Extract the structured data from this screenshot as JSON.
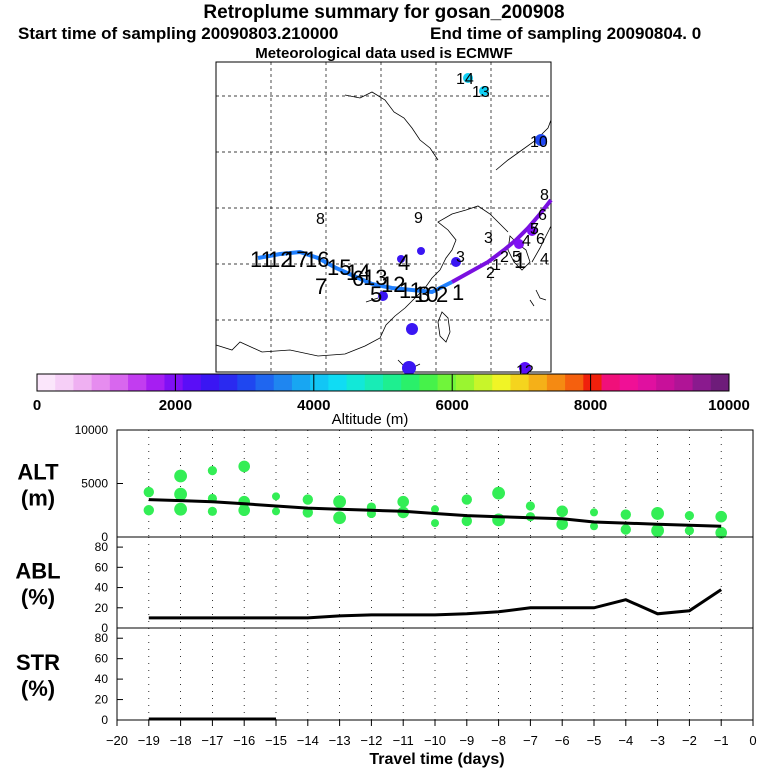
{
  "header": {
    "title": "Retroplume summary for gosan_200908",
    "start": "Start time of sampling 20090803.210000",
    "end": "End time of sampling 20090804.     0",
    "met": "Meteorological data used is ECMWF"
  },
  "colors": {
    "track_start": "#2080ff",
    "track_end": "#7a10e0",
    "scatter": "#33ee55",
    "line": "#000000",
    "grid": "#000000"
  },
  "colorbar": {
    "ticks": [
      "0",
      "2000",
      "4000",
      "6000",
      "8000",
      "10000"
    ],
    "label": "Altitude (m)",
    "colors": [
      "#fbe6fb",
      "#f6cff7",
      "#efb0f2",
      "#e68cef",
      "#d867ee",
      "#c23df0",
      "#a61ef2",
      "#8010f5",
      "#5a0ef7",
      "#3a16f3",
      "#2a2af0",
      "#1f47f0",
      "#1f66f0",
      "#1f86f0",
      "#18a6f2",
      "#12c6f5",
      "#10dcf4",
      "#12e8d8",
      "#18ecb6",
      "#1eef90",
      "#2af06a",
      "#46f24a",
      "#70f53a",
      "#9af530",
      "#c8f52a",
      "#f0f426",
      "#f5d41e",
      "#f5b018",
      "#f58a12",
      "#f5600e",
      "#f0200c",
      "#f0107a",
      "#f01096",
      "#e010a0",
      "#c8109a",
      "#b01496",
      "#8a1a8e",
      "#6e1c7a"
    ]
  },
  "map_labels": [
    "14",
    "13",
    "10",
    "9",
    "8",
    "11",
    "12",
    "17",
    "16",
    "15",
    "14",
    "13",
    "12",
    "11",
    "10",
    "6",
    "5",
    "4",
    "3",
    "2",
    "1",
    "7",
    "6",
    "5",
    "4",
    "3",
    "2",
    "1",
    "8",
    "7",
    "6",
    "5",
    "4",
    "3",
    "2",
    "1",
    "12"
  ],
  "chart_data": [
    {
      "type": "scatter",
      "name": "ALT",
      "ylabel": "ALT\n(m)",
      "ylabel_lines": [
        "ALT",
        "(m)"
      ],
      "ylim": [
        0,
        10000
      ],
      "yticks": [
        "0",
        "5000",
        "10000"
      ],
      "x": [
        -19,
        -18,
        -17,
        -16,
        -15,
        -14,
        -13,
        -12,
        -11,
        -10,
        -9,
        -8,
        -7,
        -6,
        -5,
        -4,
        -3,
        -2,
        -1
      ],
      "median": [
        3500,
        3400,
        3300,
        3100,
        2900,
        2700,
        2600,
        2500,
        2400,
        2200,
        2000,
        1900,
        1800,
        1700,
        1400,
        1300,
        1200,
        1100,
        1000
      ],
      "points": [
        {
          "x": -19,
          "y": 4200
        },
        {
          "x": -19,
          "y": 2500
        },
        {
          "x": -18,
          "y": 4000
        },
        {
          "x": -18,
          "y": 2600
        },
        {
          "x": -18,
          "y": 5700
        },
        {
          "x": -17,
          "y": 3600
        },
        {
          "x": -17,
          "y": 2400
        },
        {
          "x": -17,
          "y": 6200
        },
        {
          "x": -16,
          "y": 3300
        },
        {
          "x": -16,
          "y": 2500
        },
        {
          "x": -16,
          "y": 6600
        },
        {
          "x": -15,
          "y": 3800
        },
        {
          "x": -15,
          "y": 2400
        },
        {
          "x": -14,
          "y": 3500
        },
        {
          "x": -14,
          "y": 2300
        },
        {
          "x": -13,
          "y": 3300
        },
        {
          "x": -13,
          "y": 1800
        },
        {
          "x": -12,
          "y": 2800
        },
        {
          "x": -12,
          "y": 2200
        },
        {
          "x": -11,
          "y": 3300
        },
        {
          "x": -11,
          "y": 2300
        },
        {
          "x": -10,
          "y": 2600
        },
        {
          "x": -10,
          "y": 1300
        },
        {
          "x": -9,
          "y": 3500
        },
        {
          "x": -9,
          "y": 1500
        },
        {
          "x": -8,
          "y": 4100
        },
        {
          "x": -8,
          "y": 1600
        },
        {
          "x": -7,
          "y": 2900
        },
        {
          "x": -7,
          "y": 1900
        },
        {
          "x": -6,
          "y": 2400
        },
        {
          "x": -6,
          "y": 1200
        },
        {
          "x": -5,
          "y": 2300
        },
        {
          "x": -5,
          "y": 1000
        },
        {
          "x": -4,
          "y": 2100
        },
        {
          "x": -4,
          "y": 700
        },
        {
          "x": -3,
          "y": 2200
        },
        {
          "x": -3,
          "y": 600
        },
        {
          "x": -2,
          "y": 2000
        },
        {
          "x": -2,
          "y": 600
        },
        {
          "x": -1,
          "y": 1900
        },
        {
          "x": -1,
          "y": 400
        }
      ]
    },
    {
      "type": "line",
      "name": "ABL",
      "ylabel_lines": [
        "ABL",
        "(%)"
      ],
      "ylim": [
        0,
        90
      ],
      "yticks": [
        "0",
        "20",
        "40",
        "60",
        "80"
      ],
      "x": [
        -19,
        -18,
        -17,
        -16,
        -15,
        -14,
        -13,
        -12,
        -11,
        -10,
        -9,
        -8,
        -7,
        -6,
        -5,
        -4,
        -3,
        -2,
        -1
      ],
      "values": [
        10,
        10,
        10,
        10,
        10,
        10,
        12,
        13,
        13,
        13,
        14,
        16,
        20,
        20,
        20,
        28,
        14,
        17,
        38
      ]
    },
    {
      "type": "line",
      "name": "STR",
      "ylabel_lines": [
        "STR",
        "(%)"
      ],
      "ylim": [
        0,
        90
      ],
      "yticks": [
        "0",
        "20",
        "40",
        "60",
        "80"
      ],
      "x": [
        -19,
        -18,
        -17,
        -16,
        -15
      ],
      "values": [
        1,
        1,
        1,
        1,
        1
      ]
    }
  ],
  "xaxis": {
    "label": "Travel time (days)",
    "ticks": [
      "−20",
      "−19",
      "−18",
      "−17",
      "−16",
      "−15",
      "−14",
      "−13",
      "−12",
      "−11",
      "−10",
      "−9",
      "−8",
      "−7",
      "−6",
      "−5",
      "−4",
      "−3",
      "−2",
      "−1",
      "0"
    ]
  }
}
